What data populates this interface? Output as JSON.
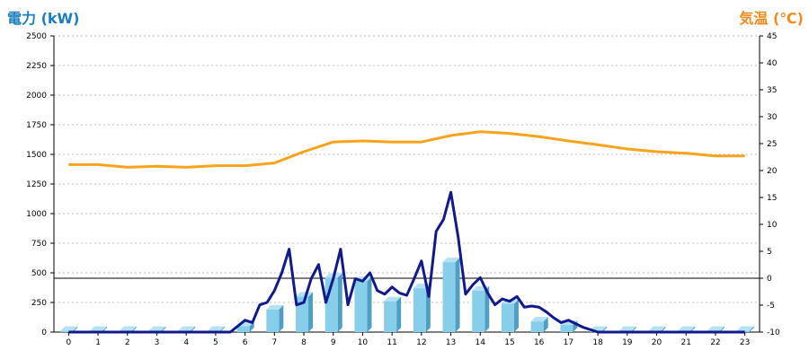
{
  "colors": {
    "left_title": "#1a7fc1",
    "right_title": "#f28a1c",
    "temp_line": "#f8a31b",
    "power_line": "#101a8c",
    "bar_front": "#87ceeb",
    "bar_side": "#4f9fc4",
    "bar_top": "#b4e1f4",
    "grid": "#bdbdbd",
    "zero_line": "#000000"
  },
  "chart_data": {
    "type": "bar+line",
    "ylabel": "電力 (kW)",
    "y2label": "気温 (℃)",
    "categories": [
      "0",
      "1",
      "2",
      "3",
      "4",
      "5",
      "6",
      "7",
      "8",
      "9",
      "10",
      "11",
      "12",
      "13",
      "14",
      "15",
      "16",
      "17",
      "18",
      "19",
      "20",
      "21",
      "22",
      "23"
    ],
    "ylim": [
      0,
      2500
    ],
    "yticks": [
      0,
      250,
      500,
      750,
      1000,
      1250,
      1500,
      1750,
      2000,
      2250,
      2500
    ],
    "y2lim": [
      -10,
      45
    ],
    "y2ticks": [
      -10,
      -5,
      0,
      5,
      10,
      15,
      20,
      25,
      30,
      35,
      40,
      45
    ],
    "grid": true,
    "bars": {
      "axis": "left",
      "values": [
        10,
        10,
        10,
        10,
        10,
        10,
        50,
        190,
        300,
        460,
        430,
        260,
        370,
        590,
        350,
        240,
        90,
        60,
        10,
        10,
        10,
        10,
        10,
        10
      ]
    },
    "temperature": {
      "axis": "right",
      "x": [
        0,
        1,
        2,
        3,
        4,
        5,
        6,
        7,
        8,
        9,
        10,
        11,
        12,
        13,
        14,
        15,
        16,
        17,
        18,
        19,
        20,
        21,
        22,
        23
      ],
      "values": [
        21.1,
        21.1,
        20.6,
        20.8,
        20.6,
        20.9,
        20.9,
        21.4,
        23.5,
        25.3,
        25.5,
        25.3,
        25.3,
        26.5,
        27.2,
        26.9,
        26.3,
        25.5,
        24.8,
        24.0,
        23.5,
        23.2,
        22.7,
        22.7
      ]
    },
    "power": {
      "axis": "left",
      "x": [
        0,
        1,
        2,
        3,
        4,
        5,
        5.5,
        5.75,
        6,
        6.25,
        6.5,
        6.75,
        7,
        7.25,
        7.5,
        7.75,
        8,
        8.25,
        8.5,
        8.75,
        9,
        9.25,
        9.5,
        9.75,
        10,
        10.25,
        10.5,
        10.75,
        11,
        11.25,
        11.5,
        11.75,
        12,
        12.25,
        12.5,
        12.75,
        13,
        13.25,
        13.5,
        13.75,
        14,
        14.25,
        14.5,
        14.75,
        15,
        15.25,
        15.5,
        15.75,
        16,
        16.25,
        16.5,
        16.75,
        17,
        17.25,
        17.5,
        18,
        19,
        20,
        21,
        22,
        23
      ],
      "values": [
        0,
        0,
        0,
        0,
        0,
        0,
        0,
        50,
        100,
        80,
        230,
        250,
        350,
        500,
        700,
        230,
        250,
        450,
        570,
        250,
        450,
        700,
        230,
        450,
        430,
        500,
        350,
        320,
        380,
        330,
        310,
        450,
        600,
        300,
        850,
        950,
        1180,
        800,
        320,
        400,
        460,
        330,
        230,
        280,
        260,
        300,
        210,
        220,
        210,
        170,
        120,
        80,
        100,
        70,
        40,
        0,
        0,
        0,
        0,
        0,
        0
      ]
    }
  }
}
